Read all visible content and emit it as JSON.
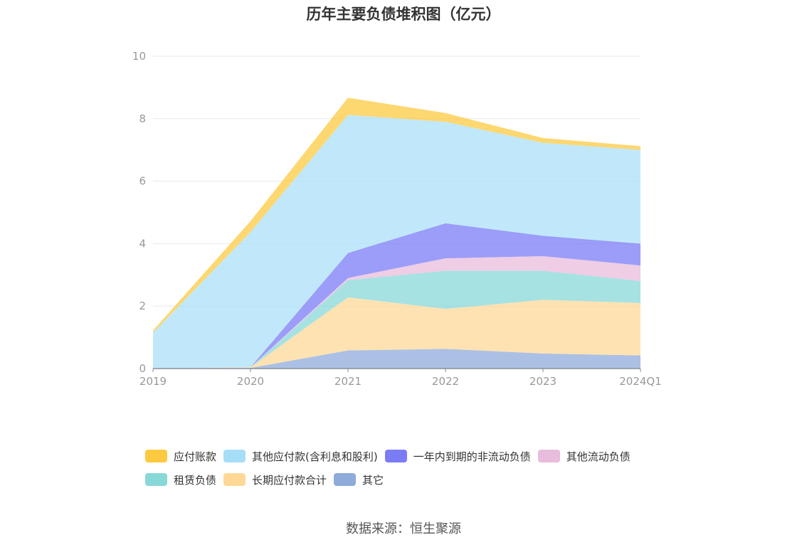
{
  "chart_data": {
    "type": "area",
    "title": "历年主要负债堆积图（亿元）",
    "source": "数据来源：恒生聚源",
    "categories": [
      "2019",
      "2020",
      "2021",
      "2022",
      "2023",
      "2024Q1"
    ],
    "ylim": [
      0,
      10
    ],
    "yticks": [
      "0",
      "2",
      "4",
      "6",
      "8",
      "10"
    ],
    "grid": true,
    "stacked": true,
    "legend_position": "bottom",
    "series": [
      {
        "name": "其它",
        "color": "#8fabdb",
        "values": [
          0.0,
          0.02,
          0.58,
          0.63,
          0.48,
          0.42
        ]
      },
      {
        "name": "长期应付款合计",
        "color": "#ffd898",
        "values": [
          0.0,
          0.02,
          1.7,
          1.28,
          1.72,
          1.68
        ]
      },
      {
        "name": "租赁负债",
        "color": "#88d8d8",
        "values": [
          0.0,
          0.0,
          0.55,
          1.22,
          0.93,
          0.7
        ]
      },
      {
        "name": "其他流动负债",
        "color": "#e8bcdc",
        "values": [
          0.0,
          0.0,
          0.07,
          0.4,
          0.47,
          0.5
        ]
      },
      {
        "name": "一年内到期的非流动负债",
        "color": "#7a7cf5",
        "values": [
          0.0,
          0.0,
          0.8,
          1.12,
          0.65,
          0.7
        ]
      },
      {
        "name": "其他应付款(含利息和股利)",
        "color": "#a6def8",
        "values": [
          1.15,
          4.33,
          4.42,
          3.25,
          2.98,
          3.0
        ]
      },
      {
        "name": "应付账款",
        "color": "#fcc940",
        "values": [
          0.07,
          0.35,
          0.55,
          0.28,
          0.15,
          0.12
        ]
      }
    ],
    "legend_order": [
      "应付账款",
      "其他应付款(含利息和股利)",
      "一年内到期的非流动负债",
      "其他流动负债",
      "租赁负债",
      "长期应付款合计",
      "其它"
    ]
  }
}
